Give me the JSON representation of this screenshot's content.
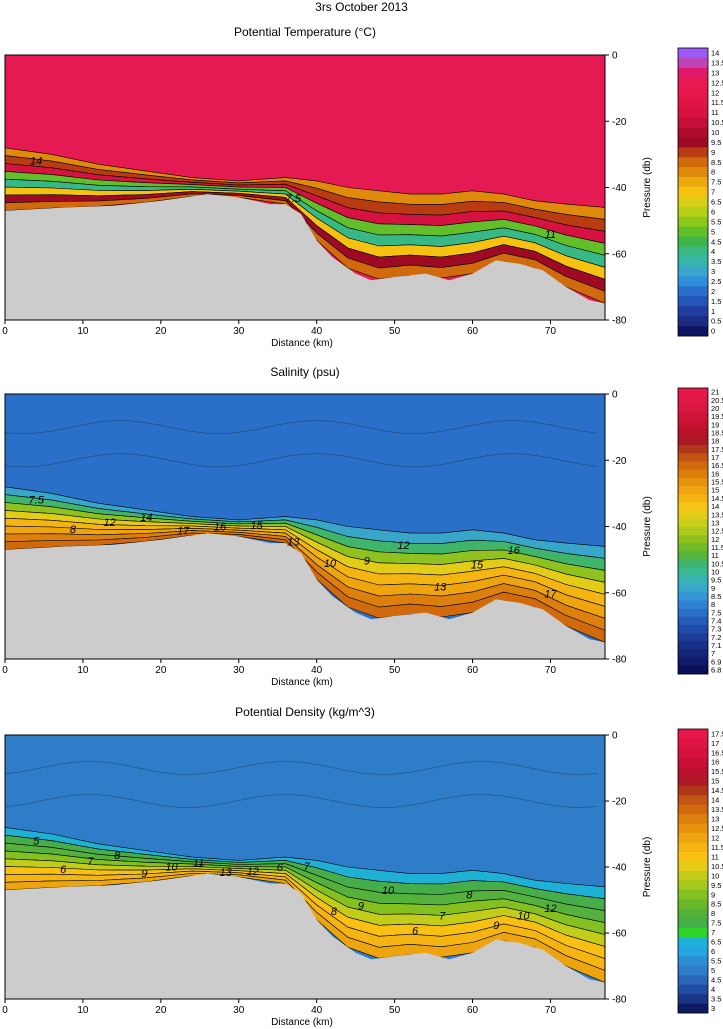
{
  "figure_title": "3rs October 2013",
  "chart_data": [
    {
      "type": "heatmap",
      "subtype": "filled-contour section",
      "title": "Potential Temperature (°C)",
      "xlabel": "Distance (km)",
      "ylabel": "Pressure (db)",
      "xlim": [
        0,
        77
      ],
      "ylim": [
        0,
        -80
      ],
      "x_ticks": [
        "0",
        "10",
        "20",
        "30",
        "40",
        "50",
        "60",
        "70"
      ],
      "y_ticks": [
        "0",
        "-20",
        "-40",
        "-60",
        "-80"
      ],
      "colorbar": {
        "labels": [
          "14",
          "13.5",
          "13",
          "12.5",
          "12",
          "11.5",
          "11",
          "10.5",
          "10",
          "9.5",
          "9",
          "8.5",
          "8",
          "7.5",
          "7",
          "6.5",
          "6",
          "5.5",
          "5",
          "4.5",
          "4",
          "3.5",
          "3",
          "2.5",
          "2",
          "1.5",
          "1",
          "0.5",
          "0"
        ],
        "colors": [
          "#9b59f5",
          "#c044b8",
          "#e0186a",
          "#e51a52",
          "#e8174b",
          "#df1545",
          "#d51240",
          "#c40f38",
          "#b00c2e",
          "#9e0a24",
          "#b83b12",
          "#d06a0c",
          "#e08a0c",
          "#ecaa0f",
          "#f6c212",
          "#d9cf18",
          "#b5d11a",
          "#8cc81c",
          "#62bf2a",
          "#3fb64b",
          "#39b887",
          "#36b5a8",
          "#3aa6cd",
          "#2f8fdb",
          "#2a6fcc",
          "#2456b8",
          "#1f3ea0",
          "#1a2c84",
          "#0d1463"
        ]
      },
      "contour_labels": [
        "14",
        "7.5",
        "11"
      ],
      "water_value": 12.5
    },
    {
      "type": "heatmap",
      "subtype": "filled-contour section",
      "title": "Salinity (psu)",
      "xlabel": "Distance (km)",
      "ylabel": "Pressure (db)",
      "xlim": [
        0,
        77
      ],
      "ylim": [
        0,
        -80
      ],
      "x_ticks": [
        "0",
        "10",
        "20",
        "30",
        "40",
        "50",
        "60",
        "70"
      ],
      "y_ticks": [
        "0",
        "-20",
        "-40",
        "-60",
        "-80"
      ],
      "colorbar": {
        "labels": [
          "21",
          "20.5",
          "20",
          "19.5",
          "19",
          "18.5",
          "18",
          "17.5",
          "17",
          "16.5",
          "16",
          "15.5",
          "15",
          "14.5",
          "14",
          "13.5",
          "13",
          "12.5",
          "12",
          "11.5",
          "11",
          "10.5",
          "10",
          "9.5",
          "9",
          "8.5",
          "8",
          "7.5",
          "7.4",
          "7.3",
          "7.2",
          "7.1",
          "7",
          "6.9",
          "6.8"
        ],
        "colors": [
          "#e8174b",
          "#e11844",
          "#d9163e",
          "#cf1437",
          "#c41230",
          "#b8112a",
          "#ab1a24",
          "#b0381a",
          "#c25414",
          "#d06a0c",
          "#dc7f0c",
          "#e6920c",
          "#eea40e",
          "#f4b411",
          "#f6c414",
          "#e2cc18",
          "#c9cf1a",
          "#acc91c",
          "#8fc21f",
          "#71bb2a",
          "#55b43d",
          "#3fb46a",
          "#38b893",
          "#37b3b0",
          "#38a6c9",
          "#3596d8",
          "#2f82d3",
          "#2a6fc8",
          "#255cb8",
          "#214ba8",
          "#1c3c98",
          "#182f88",
          "#142478",
          "#0f1a68",
          "#0a1058"
        ]
      },
      "contour_labels": [
        "7.5",
        "8",
        "12",
        "14",
        "17",
        "16",
        "15",
        "13",
        "10",
        "9",
        "12",
        "13",
        "15",
        "16",
        "17"
      ],
      "water_value": 7.5
    },
    {
      "type": "heatmap",
      "subtype": "filled-contour section",
      "title": "Potential Density (kg/m^3)",
      "xlabel": "Distance (km)",
      "ylabel": "Pressure (db)",
      "xlim": [
        0,
        77
      ],
      "ylim": [
        0,
        -80
      ],
      "x_ticks": [
        "0",
        "10",
        "20",
        "30",
        "40",
        "50",
        "60",
        "70"
      ],
      "y_ticks": [
        "0",
        "-20",
        "-40",
        "-60",
        "-80"
      ],
      "colorbar": {
        "labels": [
          "17.5",
          "17",
          "16.5",
          "16",
          "15.5",
          "15",
          "14.5",
          "14",
          "13.5",
          "13",
          "12.5",
          "12",
          "11.5",
          "11",
          "10.5",
          "10",
          "9.5",
          "9",
          "8.5",
          "8",
          "7.5",
          "7",
          "6.5",
          "6",
          "5.5",
          "5",
          "4.5",
          "4",
          "3.5",
          "3"
        ],
        "colors": [
          "#e8174b",
          "#df1545",
          "#d5133e",
          "#c91136",
          "#bc102f",
          "#ad1a26",
          "#b0381a",
          "#c25414",
          "#d06a0c",
          "#dc7f0c",
          "#e6920c",
          "#eea40e",
          "#f4b411",
          "#f8c012",
          "#e2cc18",
          "#c2cd1a",
          "#a2c81c",
          "#84c01f",
          "#69b82a",
          "#53b13c",
          "#45ad4a",
          "#2fd32a",
          "#1fb0d6",
          "#24a4e0",
          "#2b8ed4",
          "#2f7cc9",
          "#2a66b8",
          "#214ea3",
          "#193786",
          "#0e1a62"
        ]
      },
      "contour_labels": [
        "5",
        "6",
        "7",
        "8",
        "9",
        "10",
        "11",
        "13",
        "12",
        "6",
        "7",
        "8",
        "9",
        "10",
        "6",
        "7",
        "8",
        "9",
        "10",
        "12"
      ],
      "water_value": 5
    }
  ]
}
